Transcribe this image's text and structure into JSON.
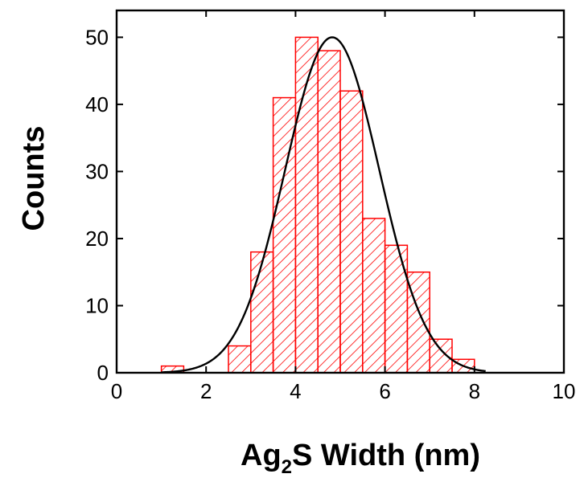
{
  "chart_data": {
    "type": "bar",
    "title": "",
    "xlabel": {
      "prefix": "Ag",
      "subscript": "2",
      "suffix": "S Width (nm)"
    },
    "ylabel": "Counts",
    "xlim": [
      0,
      10
    ],
    "ylim": [
      0,
      54
    ],
    "x_ticks": [
      0,
      2,
      4,
      6,
      8,
      10
    ],
    "y_ticks": [
      0,
      10,
      20,
      30,
      40,
      50
    ],
    "bin_width": 0.5,
    "bins": [
      {
        "x0": 1.0,
        "count": 1
      },
      {
        "x0": 1.5,
        "count": 0
      },
      {
        "x0": 2.0,
        "count": 0
      },
      {
        "x0": 2.5,
        "count": 4
      },
      {
        "x0": 3.0,
        "count": 18
      },
      {
        "x0": 3.5,
        "count": 41
      },
      {
        "x0": 4.0,
        "count": 50
      },
      {
        "x0": 4.5,
        "count": 48
      },
      {
        "x0": 5.0,
        "count": 42
      },
      {
        "x0": 5.5,
        "count": 23
      },
      {
        "x0": 6.0,
        "count": 19
      },
      {
        "x0": 6.5,
        "count": 15
      },
      {
        "x0": 7.0,
        "count": 5
      },
      {
        "x0": 7.5,
        "count": 2
      }
    ],
    "fit": {
      "type": "gaussian",
      "center": 4.82,
      "amplitude": 50,
      "sigma": 1.05,
      "x_range": [
        1.0,
        8.25
      ]
    },
    "grid": false,
    "legend": "none",
    "colors": {
      "bar": "#ff0000",
      "fit": "#000000",
      "axis": "#000000"
    }
  }
}
